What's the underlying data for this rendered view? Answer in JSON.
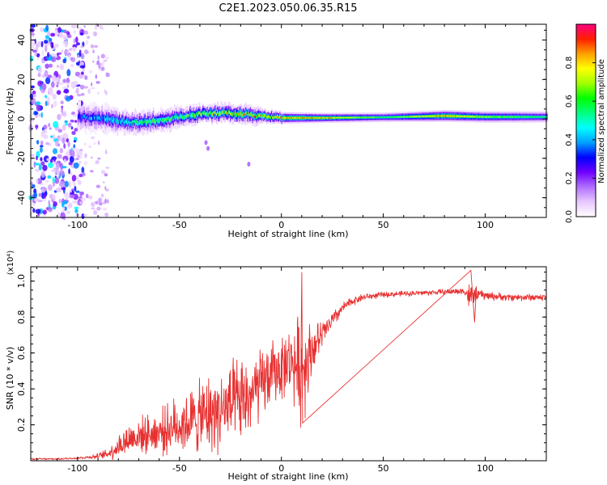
{
  "figure_title": "C2E1.2023.050.06.35.R15",
  "chart_data": [
    {
      "type": "heatmap",
      "title": "C2E1.2023.050.06.35.R15",
      "xlabel": "Height of straight line (km)",
      "ylabel": "Frequency (Hz)",
      "xlim": [
        -123,
        130
      ],
      "ylim": [
        -50,
        48
      ],
      "xticks": [
        -100,
        -50,
        0,
        50,
        100
      ],
      "xtick_labels": [
        "-100",
        "-50",
        "0",
        "50",
        "100"
      ],
      "yticks": [
        -40,
        -20,
        0,
        20,
        40
      ],
      "ytick_labels": [
        "-40",
        "-20",
        "0",
        "20",
        "40"
      ],
      "colorbar": {
        "label": "Normalized spectral amplitude",
        "range": [
          0,
          1
        ],
        "ticks": [
          0.0,
          0.2,
          0.4,
          0.6,
          0.8
        ],
        "tick_labels": [
          "0.0",
          "0.2",
          "0.4",
          "0.6",
          "0.8"
        ],
        "colors": [
          "#ffffff",
          "#e8c8ff",
          "#b070ff",
          "#7000ff",
          "#0000ff",
          "#00a0ff",
          "#00ffff",
          "#00ff80",
          "#00ff00",
          "#a0ff00",
          "#ffff00",
          "#ffa000",
          "#ff2000",
          "#ff0080"
        ]
      },
      "ridge": {
        "description_x": [
          -100,
          -85,
          -75,
          -60,
          -50,
          -40,
          -30,
          -20,
          -10,
          0,
          20,
          50,
          80,
          100,
          130
        ],
        "frequency_hz": [
          1,
          0,
          -2,
          -1,
          1,
          2.5,
          3,
          2.5,
          1.5,
          0.5,
          0.5,
          0.8,
          1.5,
          1.0,
          1.0
        ],
        "peak_amplitude": [
          0.35,
          0.45,
          0.55,
          0.6,
          0.62,
          0.7,
          0.75,
          0.8,
          0.82,
          0.85,
          0.85,
          0.6,
          0.85,
          0.7,
          0.55
        ],
        "width_hz": [
          6,
          6,
          5,
          5,
          4.5,
          4,
          4,
          4,
          3.5,
          3,
          2.5,
          2.5,
          3,
          3,
          3
        ]
      },
      "scatter_region": {
        "x": [
          -123,
          -97
        ],
        "frequency_hz": [
          -50,
          48
        ]
      },
      "faint_region": {
        "x": [
          -97,
          -85
        ],
        "frequency_hz": [
          -50,
          48
        ]
      },
      "isolated_blobs": [
        {
          "x": -37,
          "frequency_hz": -12
        },
        {
          "x": -36,
          "frequency_hz": -15
        },
        {
          "x": -16,
          "frequency_hz": -23
        }
      ]
    },
    {
      "type": "line",
      "xlabel": "Height of straight line (km)",
      "ylabel": "SNR (10 * v/v)",
      "multiplier_label": "(x10⁴)",
      "xlim": [
        -123,
        130
      ],
      "ylim": [
        0,
        1.08
      ],
      "xticks": [
        -100,
        -50,
        0,
        50,
        100
      ],
      "xtick_labels": [
        "-100",
        "-50",
        "0",
        "50",
        "100"
      ],
      "yticks": [
        0.2,
        0.4,
        0.6,
        0.8,
        1.0
      ],
      "ytick_labels": [
        "0.2",
        "0.4",
        "0.6",
        "0.8",
        "1.0"
      ],
      "color": "#e83030",
      "series": [
        {
          "name": "SNR",
          "x": [
            -123,
            -110,
            -100,
            -95,
            -90,
            -85,
            -80,
            -75,
            -70,
            -65,
            -60,
            -55,
            -50,
            -45,
            -40,
            -35,
            -30,
            -25,
            -20,
            -15,
            -10,
            -5,
            0,
            5,
            8,
            10,
            12,
            15,
            20,
            25,
            30,
            35,
            40,
            50,
            60,
            70,
            80,
            90,
            93,
            95,
            100,
            110,
            120,
            130
          ],
          "mean": [
            0.01,
            0.01,
            0.015,
            0.02,
            0.025,
            0.04,
            0.08,
            0.12,
            0.14,
            0.15,
            0.16,
            0.18,
            0.2,
            0.22,
            0.24,
            0.26,
            0.28,
            0.3,
            0.32,
            0.36,
            0.42,
            0.48,
            0.52,
            0.56,
            0.52,
            0.5,
            0.56,
            0.62,
            0.7,
            0.78,
            0.85,
            0.89,
            0.91,
            0.925,
            0.93,
            0.935,
            0.94,
            0.945,
            0.9,
            0.93,
            0.92,
            0.91,
            0.91,
            0.91
          ],
          "spread": [
            0.005,
            0.005,
            0.006,
            0.01,
            0.015,
            0.03,
            0.07,
            0.09,
            0.1,
            0.1,
            0.12,
            0.14,
            0.16,
            0.18,
            0.2,
            0.22,
            0.22,
            0.24,
            0.24,
            0.22,
            0.2,
            0.18,
            0.18,
            0.18,
            0.28,
            0.3,
            0.26,
            0.14,
            0.08,
            0.05,
            0.03,
            0.025,
            0.02,
            0.015,
            0.015,
            0.015,
            0.015,
            0.02,
            0.1,
            0.04,
            0.025,
            0.02,
            0.02,
            0.02
          ],
          "notable_values": {
            "peak_near_x_10": 1.05,
            "min_near_x_10": 0.21,
            "spike_near_x_93": 1.06,
            "dip_near_x_95": 0.77
          }
        }
      ]
    }
  ]
}
